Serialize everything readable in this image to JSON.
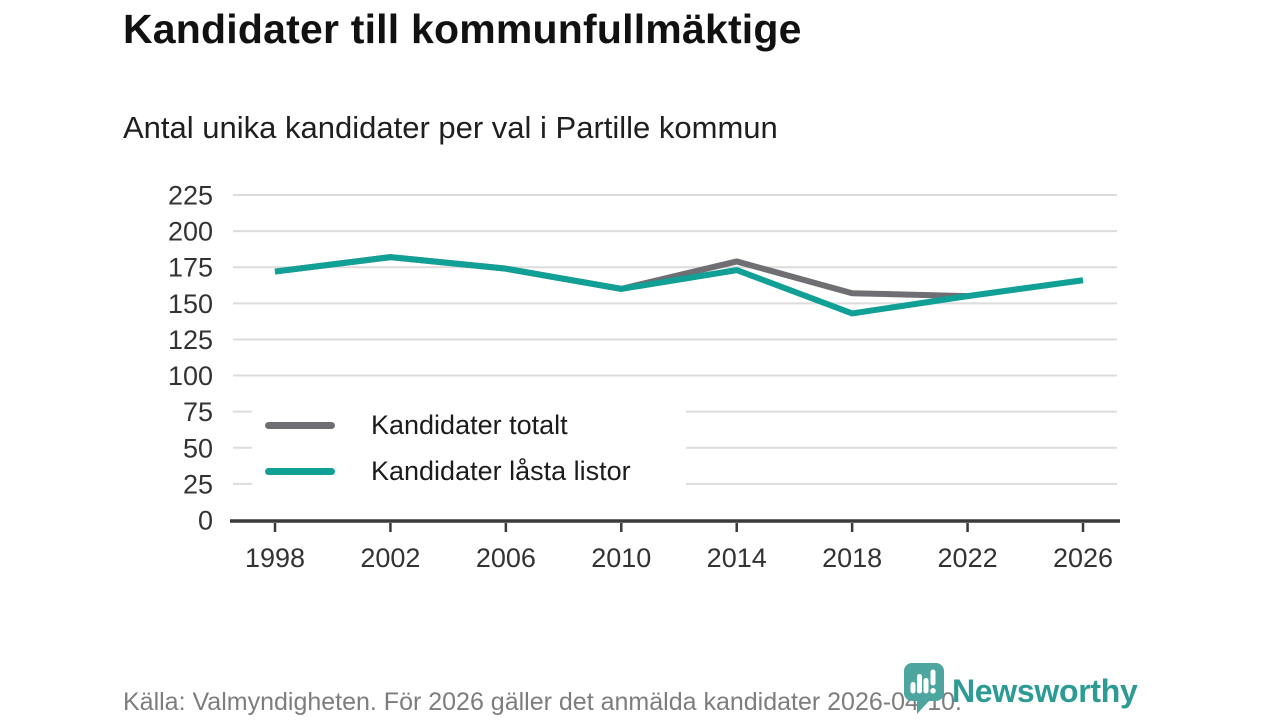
{
  "header": {
    "title": "Kandidater till kommunfullmäktige",
    "subtitle": "Antal unika kandidater per val i Partille kommun"
  },
  "chart_data": {
    "type": "line",
    "title": "Kandidater till kommunfullmäktige",
    "subtitle": "Antal unika kandidater per val i Partille kommun",
    "xlabel": "",
    "ylabel": "",
    "x": [
      1998,
      2002,
      2006,
      2010,
      2014,
      2018,
      2022,
      2026
    ],
    "xticks": [
      1998,
      2002,
      2006,
      2010,
      2014,
      2018,
      2022,
      2026
    ],
    "yticks": [
      0,
      25,
      50,
      75,
      100,
      125,
      150,
      175,
      200,
      225
    ],
    "ylim": [
      0,
      225
    ],
    "grid": true,
    "legend_position": "inside bottom-left",
    "series": [
      {
        "id": "kandidater-totalt",
        "name": "Kandidater totalt",
        "color": "#6e6e73",
        "x": [
          1998,
          2002,
          2006,
          2010,
          2014,
          2018,
          2022
        ],
        "values": [
          172,
          182,
          174,
          160,
          179,
          157,
          155
        ]
      },
      {
        "id": "kandidater-lasta-listor",
        "name": "Kandidater låsta listor",
        "color": "#10a096",
        "x": [
          1998,
          2002,
          2006,
          2010,
          2014,
          2018,
          2022,
          2026
        ],
        "values": [
          172,
          182,
          174,
          160,
          173,
          143,
          155,
          166
        ]
      }
    ]
  },
  "footer": {
    "source": "Källa: Valmyndigheten. För 2026 gäller det anmälda kandidater 2026-04-10.",
    "brand": "Newsworthy"
  },
  "colors": {
    "grid": "#dcdcdc",
    "axis": "#3a3a3a",
    "tick_text": "#333333",
    "title_text": "#111111",
    "footer_text": "#7d7d7d",
    "brand_teal": "#2c9b94",
    "logo_bubble": "#4da5a0"
  }
}
